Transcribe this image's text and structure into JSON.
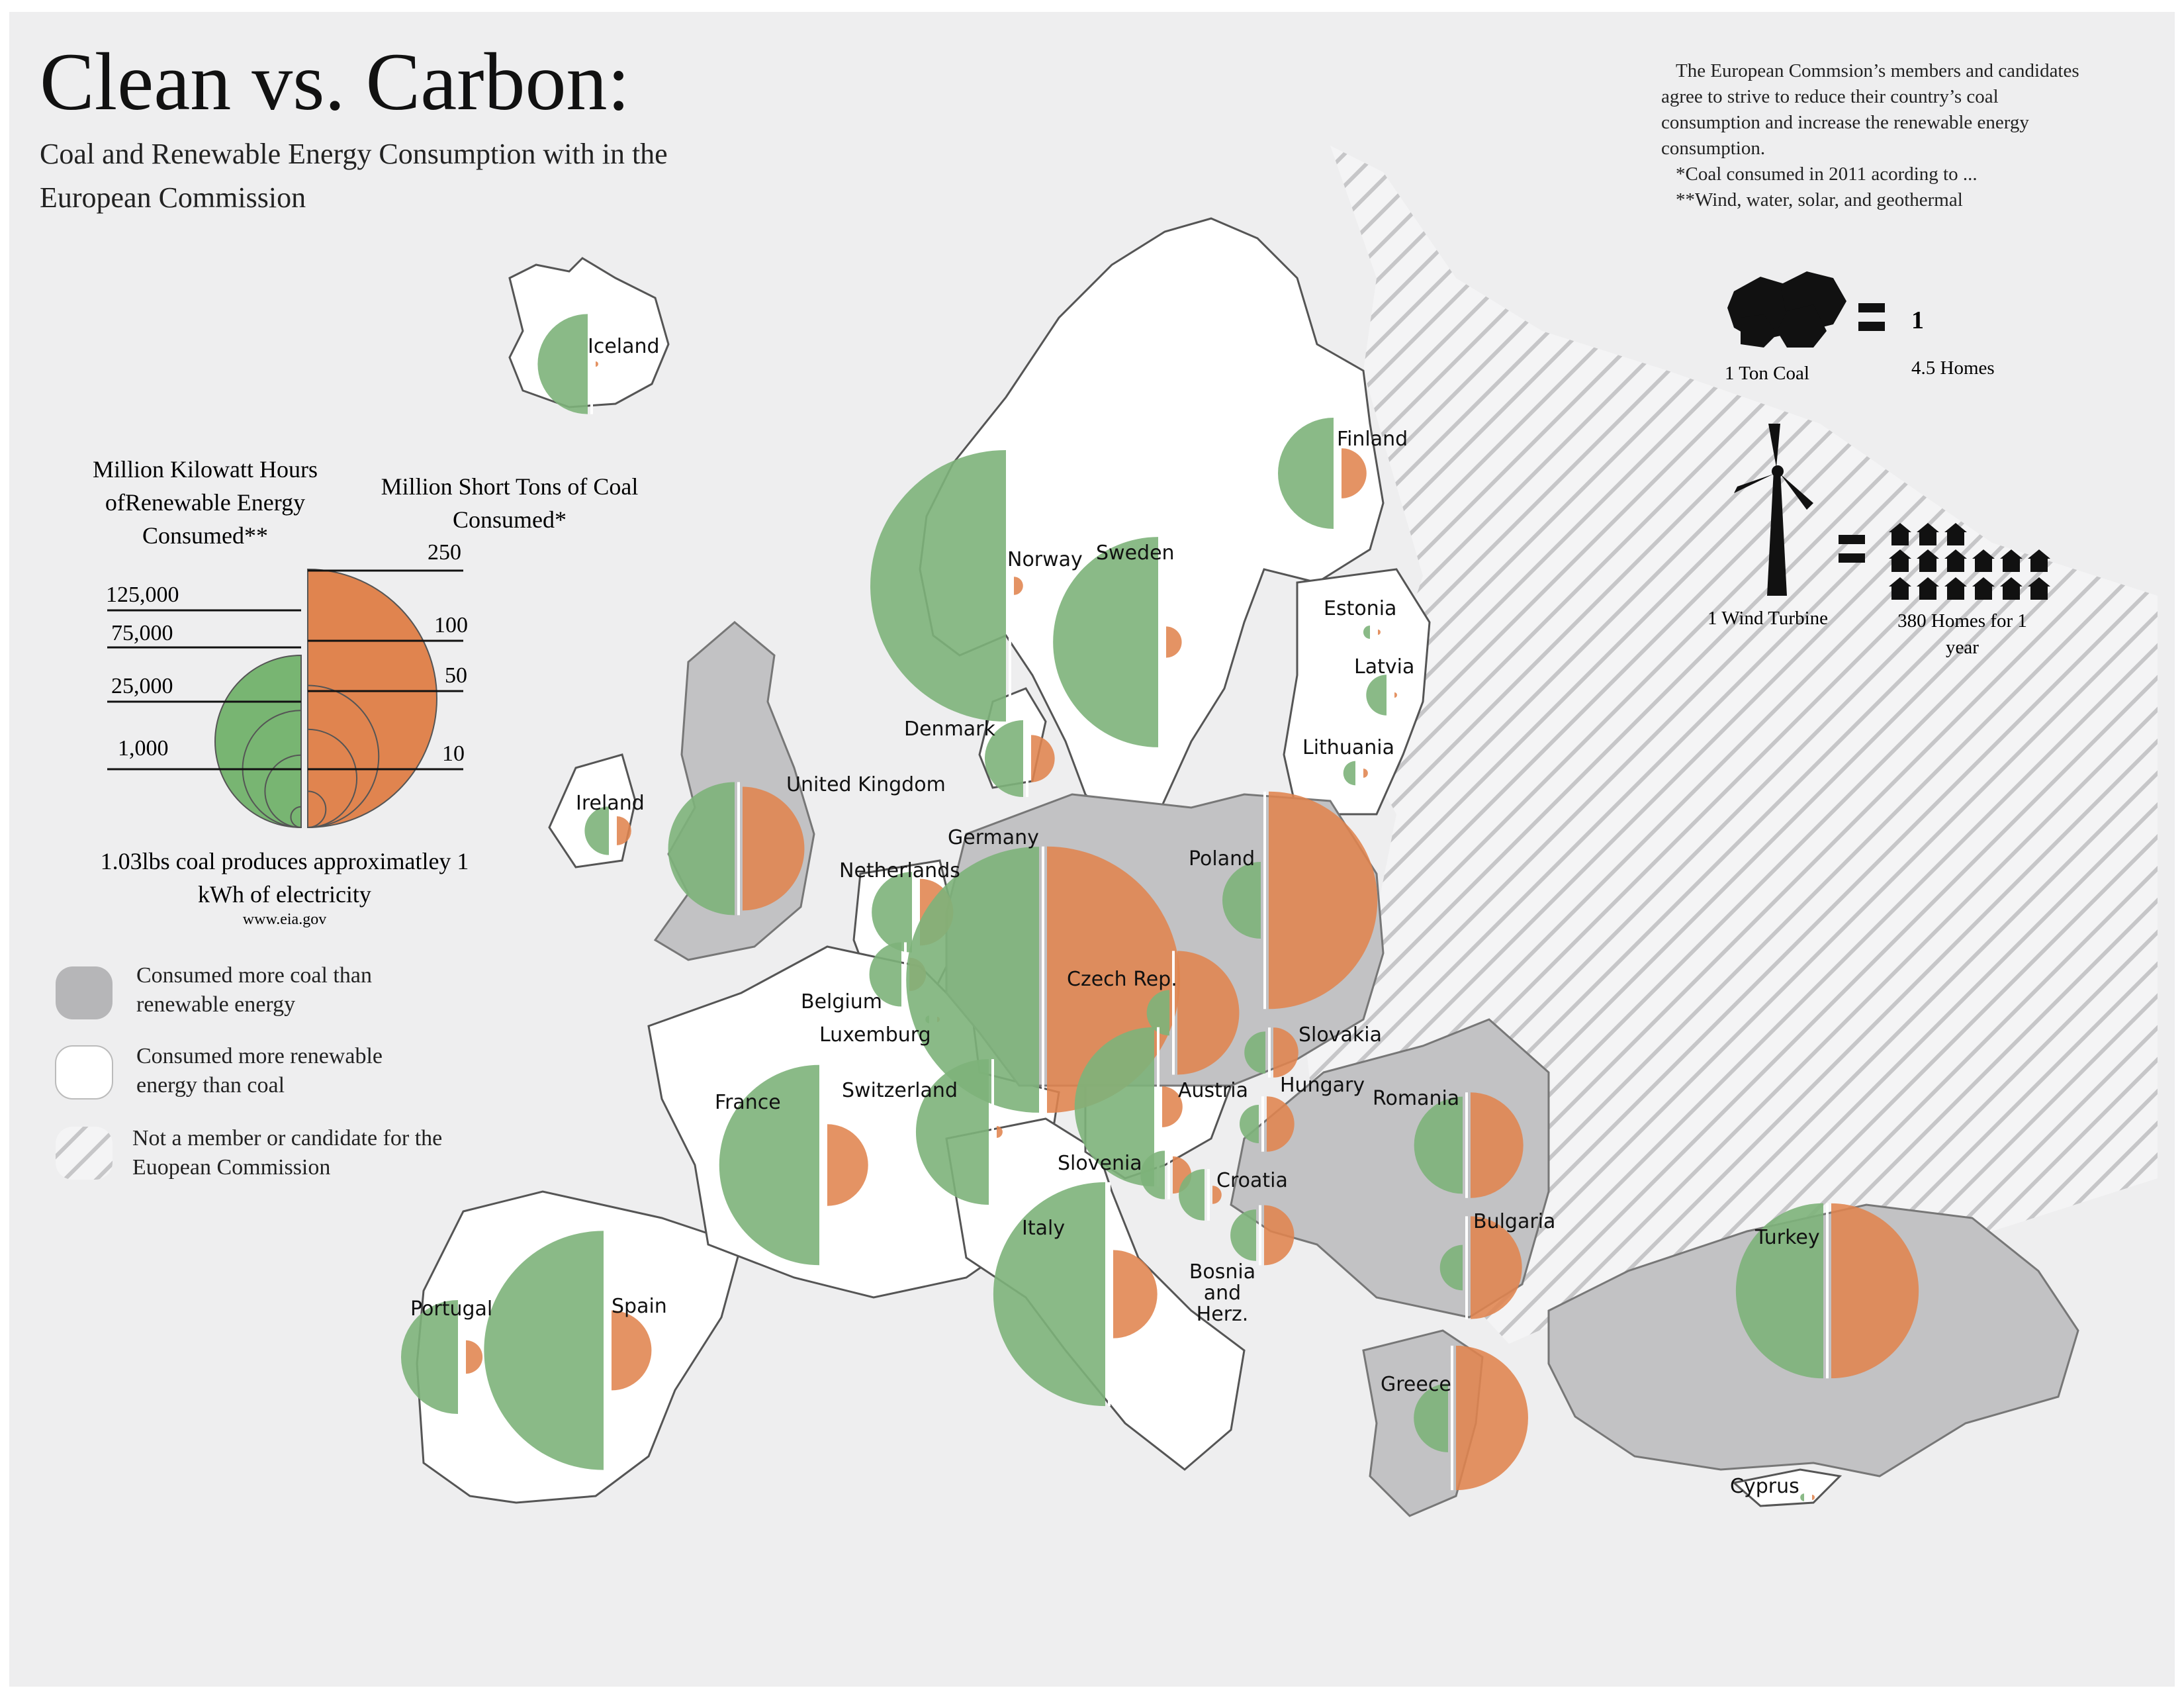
{
  "title": "Clean vs. Carbon:",
  "subtitle": "Coal and Renewable Energy Consumption with in the European Commission",
  "intro": {
    "paragraph": "The European Commsion’s members and candidates agree to strive to reduce their country’s coal consumption and increase the renewable energy consumption.",
    "note_coal": "*Coal consumed in 2011 acording to ...",
    "note_renewable": "**Wind, water, solar, and geothermal"
  },
  "equivalents": {
    "coal_label": "1 Ton Coal",
    "coal_value": "1",
    "coal_homes": "4.5 Homes",
    "turbine_label": "1 Wind Turbine",
    "turbine_homes": "380 Homes for 1 year",
    "equals": "="
  },
  "scale_legend": {
    "renewable_title": "Million Kilowatt Hours ofRenewable Energy Consumed**",
    "coal_title": "Million Short Tons of Coal Consumed*",
    "renewable_ticks": [
      "125,000",
      "75,000",
      "25,000",
      "1,000"
    ],
    "coal_ticks": [
      "250",
      "100",
      "50",
      "10"
    ],
    "conversion": "1.03lbs coal produces approximatley 1 kWh of electricity",
    "source": "www.eia.gov"
  },
  "category_legend": [
    {
      "label": "Consumed more coal than renewable energy",
      "swatch": "gray"
    },
    {
      "label": "Consumed more renewable energy than coal",
      "swatch": "white"
    },
    {
      "label": "Not a member or candidate for the Euopean Commission",
      "swatch": "hatched"
    }
  ],
  "colors": {
    "renewable": "#7db37a",
    "coal": "#e0844f",
    "coal_heavy_fill": "#c2c2c4",
    "renewable_heavy_fill": "#ffffff",
    "non_member_hatch": "#c8c8ca",
    "background": "#eeeeef"
  },
  "chart_data": {
    "type": "map",
    "encoding": "Left half-circle = renewable energy (million kWh), right half-circle = coal (million short tons); circle area proportional to value",
    "countries": [
      {
        "name": "Iceland",
        "renewable": 17000,
        "coal": 0.1,
        "category": "renewable"
      },
      {
        "name": "Norway",
        "renewable": 125000,
        "coal": 1.2,
        "category": "renewable"
      },
      {
        "name": "Sweden",
        "renewable": 75000,
        "coal": 3.5,
        "category": "renewable"
      },
      {
        "name": "Finland",
        "renewable": 21000,
        "coal": 9,
        "category": "renewable"
      },
      {
        "name": "Estonia",
        "renewable": 300,
        "coal": 0.1,
        "category": "renewable"
      },
      {
        "name": "Latvia",
        "renewable": 2800,
        "coal": 0.1,
        "category": "renewable"
      },
      {
        "name": "Lithuania",
        "renewable": 1000,
        "coal": 0.3,
        "category": "renewable"
      },
      {
        "name": "Denmark",
        "renewable": 10000,
        "coal": 8,
        "category": "renewable"
      },
      {
        "name": "Ireland",
        "renewable": 4000,
        "coal": 3,
        "category": "renewable"
      },
      {
        "name": "United Kingdom",
        "renewable": 30000,
        "coal": 55,
        "category": "coal"
      },
      {
        "name": "Netherlands",
        "renewable": 11000,
        "coal": 16,
        "category": "renewable"
      },
      {
        "name": "Belgium",
        "renewable": 7000,
        "coal": 4,
        "category": "renewable"
      },
      {
        "name": "Luxemburg",
        "renewable": 100,
        "coal": 0.1,
        "category": "renewable"
      },
      {
        "name": "Germany",
        "renewable": 120000,
        "coal": 255,
        "category": "coal"
      },
      {
        "name": "Poland",
        "renewable": 10000,
        "coal": 170,
        "category": "coal"
      },
      {
        "name": "Czech Rep.",
        "renewable": 3500,
        "coal": 55,
        "category": "coal"
      },
      {
        "name": "Slovakia",
        "renewable": 3000,
        "coal": 9,
        "category": "coal"
      },
      {
        "name": "Austria",
        "renewable": 43000,
        "coal": 6,
        "category": "renewable"
      },
      {
        "name": "Hungary",
        "renewable": 2500,
        "coal": 11,
        "category": "coal"
      },
      {
        "name": "France",
        "renewable": 68000,
        "coal": 24,
        "category": "renewable"
      },
      {
        "name": "Switzerland",
        "renewable": 36000,
        "coal": 0.5,
        "category": "renewable"
      },
      {
        "name": "Slovenia",
        "renewable": 4000,
        "coal": 5,
        "category": "coal"
      },
      {
        "name": "Croatia",
        "renewable": 4500,
        "coal": 1.2,
        "category": "renewable"
      },
      {
        "name": "Bosnia and Herz.",
        "renewable": 4500,
        "coal": 13,
        "category": "coal"
      },
      {
        "name": "Romania",
        "renewable": 16000,
        "coal": 40,
        "category": "coal"
      },
      {
        "name": "Bulgaria",
        "renewable": 3500,
        "coal": 38,
        "category": "coal"
      },
      {
        "name": "Greece",
        "renewable": 8000,
        "coal": 75,
        "category": "coal"
      },
      {
        "name": "Italy",
        "renewable": 85000,
        "coal": 28,
        "category": "renewable"
      },
      {
        "name": "Spain",
        "renewable": 97000,
        "coal": 23,
        "category": "renewable"
      },
      {
        "name": "Portugal",
        "renewable": 22000,
        "coal": 4,
        "category": "renewable"
      },
      {
        "name": "Turkey",
        "renewable": 52000,
        "coal": 110,
        "category": "coal"
      },
      {
        "name": "Cyprus",
        "renewable": 100,
        "coal": 0.1,
        "category": "renewable"
      }
    ]
  }
}
